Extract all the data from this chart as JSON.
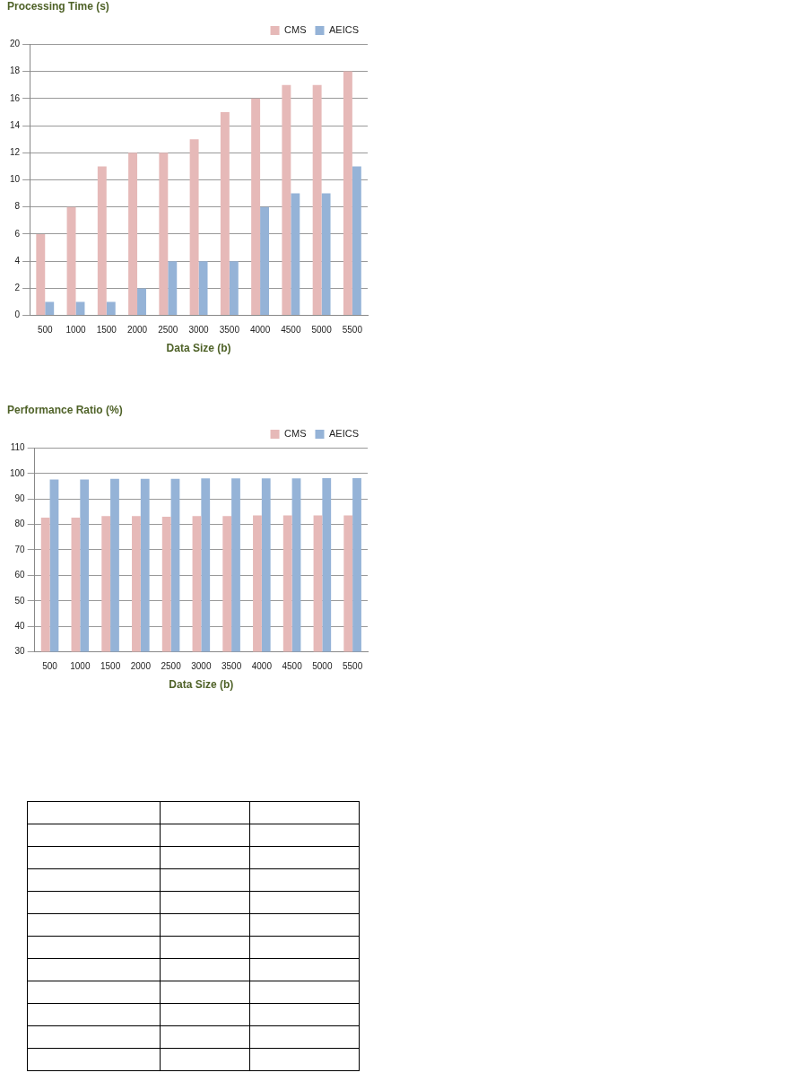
{
  "chart_data": [
    {
      "type": "bar",
      "title": "Processing Time (s)",
      "xlabel": "Data Size (b)",
      "categories": [
        "500",
        "1000",
        "1500",
        "2000",
        "2500",
        "3000",
        "3500",
        "4000",
        "4500",
        "5000",
        "5500"
      ],
      "series": [
        {
          "name": "CMS",
          "color": "#e6b9b8",
          "values": [
            6,
            8,
            11,
            12,
            12,
            13,
            15,
            16,
            17,
            17,
            18
          ]
        },
        {
          "name": "AEICS",
          "color": "#95b3d7",
          "values": [
            1,
            1,
            1,
            2,
            4,
            4,
            4,
            8,
            9,
            9,
            11
          ]
        }
      ],
      "ylim": [
        0,
        20
      ],
      "yticks": [
        0,
        2,
        4,
        6,
        8,
        10,
        12,
        14,
        16,
        18,
        20
      ],
      "grid": "y",
      "legend": "top right"
    },
    {
      "type": "bar",
      "title": "Performance Ratio (%)",
      "xlabel": "Data Size (b)",
      "categories": [
        "500",
        "1000",
        "1500",
        "2000",
        "2500",
        "3000",
        "3500",
        "4000",
        "4500",
        "5000",
        "5500"
      ],
      "series": [
        {
          "name": "CMS",
          "color": "#e6b9b8",
          "values": [
            82.7,
            82.7,
            83.3,
            83.3,
            83.0,
            83.3,
            83.3,
            83.6,
            83.6,
            83.6,
            83.6
          ]
        },
        {
          "name": "AEICS",
          "color": "#95b3d7",
          "values": [
            97.6,
            97.6,
            97.9,
            97.9,
            97.9,
            98.1,
            98.1,
            98.1,
            98.1,
            98.2,
            98.2
          ]
        }
      ],
      "ylim": [
        30,
        110
      ],
      "yticks": [
        30,
        40,
        50,
        60,
        70,
        80,
        90,
        100,
        110
      ],
      "grid": "y",
      "legend": "top right"
    }
  ]
}
